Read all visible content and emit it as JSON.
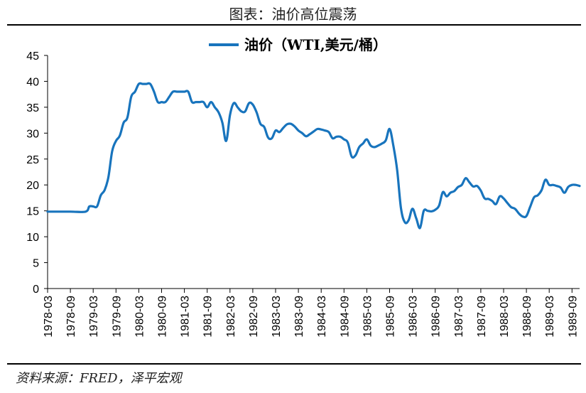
{
  "page": {
    "title": "图表：油价高位震荡",
    "source": "资料来源：FRED，泽平宏观"
  },
  "chart_data": {
    "type": "line",
    "legend": {
      "label": "油价（WTI,美元/桶）",
      "placement": "top-center"
    },
    "series": [
      {
        "name": "油价（WTI,美元/桶）",
        "color": "#1874BD",
        "points": [
          [
            "1978-03",
            14.85
          ],
          [
            "1978-09",
            14.85
          ],
          [
            "1979-01",
            14.85
          ],
          [
            "1979-02",
            15.85
          ],
          [
            "1979-03",
            15.85
          ],
          [
            "1979-04",
            15.85
          ],
          [
            "1979-05",
            18.0
          ],
          [
            "1979-06",
            19.0
          ],
          [
            "1979-07",
            21.5
          ],
          [
            "1979-08",
            26.5
          ],
          [
            "1979-09",
            28.5
          ],
          [
            "1979-10",
            29.5
          ],
          [
            "1979-11",
            32.0
          ],
          [
            "1979-12",
            33.0
          ],
          [
            "1980-01",
            37.0
          ],
          [
            "1980-02",
            38.0
          ],
          [
            "1980-03",
            39.5
          ],
          [
            "1980-04",
            39.5
          ],
          [
            "1980-05",
            39.5
          ],
          [
            "1980-06",
            39.5
          ],
          [
            "1980-07",
            38.0
          ],
          [
            "1980-08",
            36.0
          ],
          [
            "1980-09",
            36.0
          ],
          [
            "1980-10",
            36.0
          ],
          [
            "1980-11",
            37.0
          ],
          [
            "1980-12",
            38.0
          ],
          [
            "1981-01",
            38.0
          ],
          [
            "1981-02",
            38.0
          ],
          [
            "1981-03",
            38.0
          ],
          [
            "1981-04",
            38.0
          ],
          [
            "1981-05",
            36.0
          ],
          [
            "1981-06",
            36.0
          ],
          [
            "1981-07",
            36.0
          ],
          [
            "1981-08",
            36.0
          ],
          [
            "1981-09",
            35.0
          ],
          [
            "1981-10",
            36.0
          ],
          [
            "1981-11",
            35.0
          ],
          [
            "1981-12",
            34.0
          ],
          [
            "1982-01",
            32.0
          ],
          [
            "1982-02",
            28.5
          ],
          [
            "1982-03",
            33.5
          ],
          [
            "1982-04",
            35.8
          ],
          [
            "1982-05",
            35.0
          ],
          [
            "1982-06",
            34.2
          ],
          [
            "1982-07",
            34.2
          ],
          [
            "1982-08",
            35.8
          ],
          [
            "1982-09",
            35.5
          ],
          [
            "1982-10",
            34.0
          ],
          [
            "1982-11",
            31.8
          ],
          [
            "1982-12",
            31.2
          ],
          [
            "1983-01",
            29.2
          ],
          [
            "1983-02",
            29.0
          ],
          [
            "1983-03",
            30.5
          ],
          [
            "1983-04",
            30.2
          ],
          [
            "1983-05",
            31.0
          ],
          [
            "1983-06",
            31.7
          ],
          [
            "1983-07",
            31.8
          ],
          [
            "1983-08",
            31.3
          ],
          [
            "1983-09",
            30.5
          ],
          [
            "1983-10",
            30.0
          ],
          [
            "1983-11",
            29.4
          ],
          [
            "1983-12",
            29.8
          ],
          [
            "1984-01",
            30.3
          ],
          [
            "1984-02",
            30.8
          ],
          [
            "1984-03",
            30.7
          ],
          [
            "1984-04",
            30.5
          ],
          [
            "1984-05",
            30.2
          ],
          [
            "1984-06",
            29.0
          ],
          [
            "1984-07",
            29.3
          ],
          [
            "1984-08",
            29.3
          ],
          [
            "1984-09",
            28.8
          ],
          [
            "1984-10",
            28.2
          ],
          [
            "1984-11",
            25.5
          ],
          [
            "1984-12",
            25.7
          ],
          [
            "1985-01",
            27.3
          ],
          [
            "1985-02",
            28.0
          ],
          [
            "1985-03",
            28.8
          ],
          [
            "1985-04",
            27.6
          ],
          [
            "1985-05",
            27.3
          ],
          [
            "1985-06",
            27.6
          ],
          [
            "1985-07",
            28.0
          ],
          [
            "1985-08",
            28.6
          ],
          [
            "1985-09",
            30.8
          ],
          [
            "1985-10",
            27.5
          ],
          [
            "1985-11",
            22.8
          ],
          [
            "1985-12",
            15.5
          ],
          [
            "1986-01",
            12.8
          ],
          [
            "1986-02",
            13.2
          ],
          [
            "1986-03",
            15.4
          ],
          [
            "1986-04",
            13.6
          ],
          [
            "1986-05",
            11.7
          ],
          [
            "1986-06",
            15.0
          ],
          [
            "1986-07",
            15.0
          ],
          [
            "1986-08",
            14.9
          ],
          [
            "1986-09",
            15.2
          ],
          [
            "1986-10",
            16.0
          ],
          [
            "1986-11",
            18.6
          ],
          [
            "1986-12",
            17.8
          ],
          [
            "1987-01",
            18.5
          ],
          [
            "1987-02",
            18.8
          ],
          [
            "1987-03",
            19.6
          ],
          [
            "1987-04",
            20.0
          ],
          [
            "1987-05",
            21.3
          ],
          [
            "1987-06",
            20.5
          ],
          [
            "1987-07",
            19.7
          ],
          [
            "1987-08",
            19.8
          ],
          [
            "1987-09",
            18.9
          ],
          [
            "1987-10",
            17.4
          ],
          [
            "1987-11",
            17.3
          ],
          [
            "1987-12",
            16.9
          ],
          [
            "1988-01",
            16.3
          ],
          [
            "1988-02",
            17.8
          ],
          [
            "1988-03",
            17.4
          ],
          [
            "1988-04",
            16.5
          ],
          [
            "1988-05",
            15.7
          ],
          [
            "1988-06",
            15.4
          ],
          [
            "1988-07",
            14.5
          ],
          [
            "1988-08",
            13.9
          ],
          [
            "1988-09",
            14.0
          ],
          [
            "1988-10",
            15.8
          ],
          [
            "1988-11",
            17.6
          ],
          [
            "1988-12",
            18.0
          ],
          [
            "1989-01",
            19.0
          ],
          [
            "1989-02",
            21.0
          ],
          [
            "1989-03",
            20.0
          ],
          [
            "1989-04",
            20.0
          ],
          [
            "1989-05",
            19.8
          ],
          [
            "1989-06",
            19.5
          ],
          [
            "1989-07",
            18.5
          ],
          [
            "1989-08",
            19.6
          ],
          [
            "1989-09",
            20.0
          ],
          [
            "1989-10",
            20.0
          ],
          [
            "1989-11",
            19.8
          ]
        ]
      }
    ],
    "x_ticks": [
      "1978-03",
      "1978-09",
      "1979-03",
      "1979-09",
      "1980-03",
      "1980-09",
      "1981-03",
      "1981-09",
      "1982-03",
      "1982-09",
      "1983-03",
      "1983-09",
      "1984-03",
      "1984-09",
      "1985-03",
      "1985-09",
      "1986-03",
      "1986-09",
      "1987-03",
      "1987-09",
      "1988-03",
      "1988-09",
      "1989-03",
      "1989-09"
    ],
    "x_range": [
      "1978-03",
      "1989-11"
    ],
    "y_ticks": [
      0,
      5,
      10,
      15,
      20,
      25,
      30,
      35,
      40,
      45
    ],
    "ylim": [
      0,
      45
    ],
    "grid": false,
    "xlabel": "",
    "ylabel": ""
  }
}
